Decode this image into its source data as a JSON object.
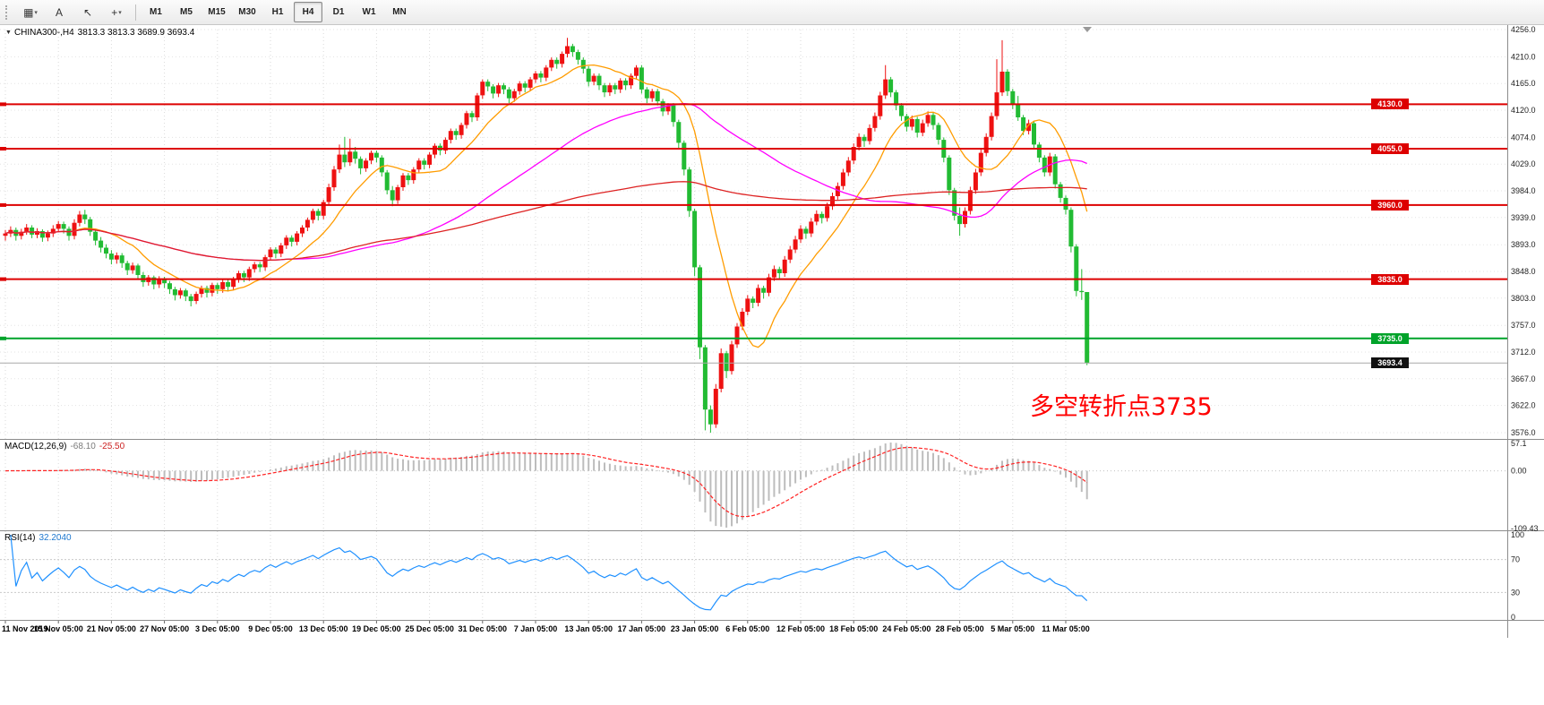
{
  "toolbar": {
    "icons": [
      {
        "name": "chart-window-icon",
        "glyph": "▦",
        "caret": true
      },
      {
        "name": "text-tool-icon",
        "glyph": "A",
        "caret": false
      },
      {
        "name": "cursor-tool-icon",
        "glyph": "↖",
        "caret": false
      },
      {
        "name": "crosshair-tool-icon",
        "glyph": "+",
        "caret": true
      }
    ],
    "timeframes": [
      "M1",
      "M5",
      "M15",
      "M30",
      "H1",
      "H4",
      "D1",
      "W1",
      "MN"
    ],
    "active_timeframe": "H4"
  },
  "chart": {
    "symbol_period": "CHINA300-,H4",
    "ohlc": "3813.3 3813.3 3689.9 3693.4",
    "annotation": {
      "text": "多空转折点3735",
      "color": "#ff0000"
    },
    "price_axis": [
      "4256.0",
      "4210.0",
      "4165.0",
      "4120.0",
      "4074.0",
      "4029.0",
      "3984.0",
      "3939.0",
      "3893.0",
      "3848.0",
      "3803.0",
      "3757.0",
      "3712.0",
      "3667.0",
      "3622.0",
      "3576.0"
    ],
    "hlines": [
      {
        "price": 4130.0,
        "label": "4130.0",
        "color": "#dd0000"
      },
      {
        "price": 4055.0,
        "label": "4055.0",
        "color": "#dd0000"
      },
      {
        "price": 3960.0,
        "label": "3960.0",
        "color": "#dd0000"
      },
      {
        "price": 3835.0,
        "label": "3835.0",
        "color": "#dd0000"
      },
      {
        "price": 3735.0,
        "label": "3735.0",
        "color": "#00a32a"
      }
    ],
    "current_price": {
      "value": 3693.4,
      "label": "3693.4",
      "color": "#111111"
    }
  },
  "macd": {
    "name": "MACD(12,26,9)",
    "value_main": "-68.10",
    "value_signal": "-25.50",
    "axis": [
      "57.1",
      "0.00",
      "-109.43"
    ],
    "params": {
      "fast": 12,
      "slow": 26,
      "signal": 9
    },
    "colors": {
      "histogram": "#bdbdbd",
      "signal": "#ff2222"
    }
  },
  "rsi": {
    "name": "RSI(14)",
    "value": "32.2040",
    "period": 14,
    "levels": [
      70,
      30
    ],
    "axis": [
      "100",
      "70",
      "30",
      "0"
    ],
    "color": "#1e90ff"
  },
  "time_axis": {
    "labels": [
      "11 Nov 2019",
      "15 Nov 05:00",
      "21 Nov 05:00",
      "27 Nov 05:00",
      "3 Dec 05:00",
      "9 Dec 05:00",
      "13 Dec 05:00",
      "19 Dec 05:00",
      "25 Dec 05:00",
      "31 Dec 05:00",
      "7 Jan 05:00",
      "13 Jan 05:00",
      "17 Jan 05:00",
      "23 Jan 05:00",
      "6 Feb 05:00",
      "12 Feb 05:00",
      "18 Feb 05:00",
      "24 Feb 05:00",
      "28 Feb 05:00",
      "5 Mar 05:00",
      "11 Mar 05:00"
    ],
    "tick_bars": [
      0,
      10,
      20,
      30,
      40,
      50,
      60,
      70,
      80,
      90,
      100,
      110,
      120,
      130,
      140,
      150,
      160,
      170,
      180,
      190,
      200
    ]
  },
  "chart_data": {
    "type": "candlestick",
    "symbol": "CHINA300-",
    "timeframe": "H4",
    "ylim": [
      3576,
      4262
    ],
    "colors": {
      "up": "#ee1111",
      "down": "#22bb33"
    },
    "ma": [
      {
        "period": 12,
        "color": "#ff9c00"
      },
      {
        "period": 55,
        "color": "#ff00ff"
      },
      {
        "period": 200,
        "color": "#dd2222"
      }
    ],
    "candles": [
      [
        3908,
        3918,
        3900,
        3912
      ],
      [
        3912,
        3924,
        3906,
        3918
      ],
      [
        3918,
        3922,
        3900,
        3908
      ],
      [
        3908,
        3920,
        3902,
        3915
      ],
      [
        3915,
        3928,
        3910,
        3922
      ],
      [
        3922,
        3926,
        3904,
        3910
      ],
      [
        3910,
        3921,
        3904,
        3916
      ],
      [
        3916,
        3919,
        3898,
        3905
      ],
      [
        3905,
        3917,
        3899,
        3912
      ],
      [
        3912,
        3926,
        3906,
        3920
      ],
      [
        3920,
        3933,
        3914,
        3928
      ],
      [
        3928,
        3932,
        3912,
        3920
      ],
      [
        3920,
        3924,
        3900,
        3908
      ],
      [
        3908,
        3936,
        3902,
        3930
      ],
      [
        3930,
        3950,
        3924,
        3944
      ],
      [
        3944,
        3952,
        3928,
        3936
      ],
      [
        3936,
        3940,
        3908,
        3915
      ],
      [
        3915,
        3920,
        3892,
        3900
      ],
      [
        3900,
        3906,
        3880,
        3888
      ],
      [
        3888,
        3894,
        3870,
        3878
      ],
      [
        3878,
        3884,
        3860,
        3868
      ],
      [
        3868,
        3880,
        3861,
        3875
      ],
      [
        3875,
        3879,
        3854,
        3862
      ],
      [
        3862,
        3866,
        3842,
        3850
      ],
      [
        3850,
        3863,
        3844,
        3858
      ],
      [
        3858,
        3861,
        3834,
        3842
      ],
      [
        3842,
        3847,
        3822,
        3830
      ],
      [
        3830,
        3842,
        3824,
        3838
      ],
      [
        3838,
        3841,
        3818,
        3826
      ],
      [
        3826,
        3840,
        3820,
        3836
      ],
      [
        3836,
        3839,
        3820,
        3828
      ],
      [
        3828,
        3832,
        3810,
        3818
      ],
      [
        3818,
        3822,
        3799,
        3808
      ],
      [
        3808,
        3820,
        3802,
        3816
      ],
      [
        3816,
        3819,
        3798,
        3806
      ],
      [
        3806,
        3810,
        3789,
        3798
      ],
      [
        3798,
        3814,
        3793,
        3810
      ],
      [
        3810,
        3824,
        3804,
        3820
      ],
      [
        3820,
        3824,
        3804,
        3812
      ],
      [
        3812,
        3829,
        3806,
        3825
      ],
      [
        3825,
        3829,
        3810,
        3818
      ],
      [
        3818,
        3834,
        3812,
        3830
      ],
      [
        3830,
        3834,
        3814,
        3822
      ],
      [
        3822,
        3839,
        3816,
        3835
      ],
      [
        3835,
        3849,
        3829,
        3845
      ],
      [
        3845,
        3849,
        3830,
        3838
      ],
      [
        3838,
        3856,
        3832,
        3852
      ],
      [
        3852,
        3864,
        3846,
        3860
      ],
      [
        3860,
        3864,
        3847,
        3855
      ],
      [
        3855,
        3876,
        3849,
        3872
      ],
      [
        3872,
        3889,
        3866,
        3885
      ],
      [
        3885,
        3889,
        3870,
        3878
      ],
      [
        3878,
        3896,
        3872,
        3892
      ],
      [
        3892,
        3909,
        3886,
        3905
      ],
      [
        3905,
        3909,
        3890,
        3898
      ],
      [
        3898,
        3916,
        3892,
        3912
      ],
      [
        3912,
        3926,
        3906,
        3922
      ],
      [
        3922,
        3939,
        3916,
        3935
      ],
      [
        3935,
        3954,
        3929,
        3950
      ],
      [
        3950,
        3954,
        3934,
        3942
      ],
      [
        3942,
        3969,
        3936,
        3965
      ],
      [
        3965,
        3996,
        3959,
        3990
      ],
      [
        3990,
        4026,
        3984,
        4020
      ],
      [
        4020,
        4062,
        4014,
        4045
      ],
      [
        4045,
        4075,
        4024,
        4032
      ],
      [
        4032,
        4072,
        4026,
        4050
      ],
      [
        4050,
        4058,
        4030,
        4038
      ],
      [
        4038,
        4042,
        4012,
        4022
      ],
      [
        4022,
        4039,
        4016,
        4035
      ],
      [
        4035,
        4052,
        4029,
        4048
      ],
      [
        4048,
        4052,
        4032,
        4040
      ],
      [
        4040,
        4044,
        4008,
        4015
      ],
      [
        4015,
        4019,
        3978,
        3985
      ],
      [
        3985,
        3992,
        3958,
        3968
      ],
      [
        3968,
        3994,
        3962,
        3990
      ],
      [
        3990,
        4014,
        3984,
        4010
      ],
      [
        4010,
        4014,
        3994,
        4002
      ],
      [
        4002,
        4024,
        3996,
        4020
      ],
      [
        4020,
        4039,
        4014,
        4035
      ],
      [
        4035,
        4039,
        4020,
        4028
      ],
      [
        4028,
        4049,
        4022,
        4045
      ],
      [
        4045,
        4064,
        4039,
        4060
      ],
      [
        4060,
        4064,
        4044,
        4052
      ],
      [
        4052,
        4074,
        4046,
        4070
      ],
      [
        4070,
        4089,
        4064,
        4085
      ],
      [
        4085,
        4089,
        4070,
        4078
      ],
      [
        4078,
        4099,
        4072,
        4095
      ],
      [
        4095,
        4119,
        4089,
        4115
      ],
      [
        4115,
        4119,
        4100,
        4108
      ],
      [
        4108,
        4149,
        4102,
        4145
      ],
      [
        4145,
        4172,
        4139,
        4168
      ],
      [
        4168,
        4172,
        4152,
        4160
      ],
      [
        4160,
        4164,
        4140,
        4148
      ],
      [
        4148,
        4166,
        4142,
        4162
      ],
      [
        4162,
        4166,
        4147,
        4155
      ],
      [
        4155,
        4159,
        4132,
        4140
      ],
      [
        4140,
        4156,
        4134,
        4152
      ],
      [
        4152,
        4169,
        4146,
        4165
      ],
      [
        4165,
        4169,
        4150,
        4158
      ],
      [
        4158,
        4176,
        4152,
        4172
      ],
      [
        4172,
        4186,
        4166,
        4182
      ],
      [
        4182,
        4186,
        4167,
        4175
      ],
      [
        4175,
        4196,
        4169,
        4192
      ],
      [
        4192,
        4209,
        4186,
        4205
      ],
      [
        4205,
        4209,
        4190,
        4198
      ],
      [
        4198,
        4219,
        4192,
        4215
      ],
      [
        4215,
        4242,
        4209,
        4228
      ],
      [
        4228,
        4232,
        4210,
        4218
      ],
      [
        4218,
        4222,
        4197,
        4205
      ],
      [
        4205,
        4209,
        4182,
        4190
      ],
      [
        4190,
        4194,
        4160,
        4168
      ],
      [
        4168,
        4182,
        4162,
        4178
      ],
      [
        4178,
        4182,
        4154,
        4162
      ],
      [
        4162,
        4166,
        4142,
        4150
      ],
      [
        4150,
        4166,
        4144,
        4162
      ],
      [
        4162,
        4166,
        4147,
        4155
      ],
      [
        4155,
        4174,
        4149,
        4170
      ],
      [
        4170,
        4174,
        4154,
        4162
      ],
      [
        4162,
        4182,
        4156,
        4178
      ],
      [
        4178,
        4196,
        4172,
        4192
      ],
      [
        4192,
        4196,
        4148,
        4155
      ],
      [
        4155,
        4159,
        4132,
        4140
      ],
      [
        4140,
        4156,
        4134,
        4152
      ],
      [
        4152,
        4156,
        4128,
        4135
      ],
      [
        4135,
        4139,
        4110,
        4118
      ],
      [
        4118,
        4132,
        4112,
        4128
      ],
      [
        4128,
        4132,
        4092,
        4100
      ],
      [
        4100,
        4104,
        4056,
        4065
      ],
      [
        4065,
        4069,
        4010,
        4020
      ],
      [
        4020,
        4024,
        3940,
        3950
      ],
      [
        3950,
        3954,
        3840,
        3855
      ],
      [
        3855,
        3859,
        3700,
        3720
      ],
      [
        3720,
        3724,
        3580,
        3615
      ],
      [
        3615,
        3622,
        3576,
        3590
      ],
      [
        3590,
        3658,
        3584,
        3650
      ],
      [
        3650,
        3718,
        3644,
        3710
      ],
      [
        3710,
        3714,
        3668,
        3680
      ],
      [
        3680,
        3731,
        3674,
        3725
      ],
      [
        3725,
        3761,
        3719,
        3755
      ],
      [
        3755,
        3786,
        3749,
        3780
      ],
      [
        3780,
        3808,
        3774,
        3802
      ],
      [
        3802,
        3806,
        3786,
        3795
      ],
      [
        3795,
        3826,
        3789,
        3820
      ],
      [
        3820,
        3824,
        3802,
        3812
      ],
      [
        3812,
        3844,
        3806,
        3838
      ],
      [
        3838,
        3858,
        3832,
        3852
      ],
      [
        3852,
        3856,
        3836,
        3845
      ],
      [
        3845,
        3874,
        3839,
        3868
      ],
      [
        3868,
        3891,
        3862,
        3885
      ],
      [
        3885,
        3908,
        3879,
        3902
      ],
      [
        3902,
        3926,
        3896,
        3920
      ],
      [
        3920,
        3924,
        3903,
        3912
      ],
      [
        3912,
        3938,
        3906,
        3932
      ],
      [
        3932,
        3951,
        3926,
        3945
      ],
      [
        3945,
        3949,
        3929,
        3938
      ],
      [
        3938,
        3964,
        3932,
        3958
      ],
      [
        3958,
        3981,
        3952,
        3975
      ],
      [
        3975,
        3998,
        3969,
        3992
      ],
      [
        3992,
        4021,
        3986,
        4015
      ],
      [
        4015,
        4041,
        4009,
        4035
      ],
      [
        4035,
        4064,
        4029,
        4058
      ],
      [
        4058,
        4081,
        4052,
        4075
      ],
      [
        4075,
        4079,
        4058,
        4068
      ],
      [
        4068,
        4096,
        4062,
        4090
      ],
      [
        4090,
        4116,
        4084,
        4110
      ],
      [
        4110,
        4151,
        4104,
        4145
      ],
      [
        4145,
        4196,
        4139,
        4172
      ],
      [
        4172,
        4176,
        4142,
        4150
      ],
      [
        4150,
        4154,
        4120,
        4128
      ],
      [
        4128,
        4132,
        4102,
        4110
      ],
      [
        4110,
        4114,
        4084,
        4092
      ],
      [
        4092,
        4111,
        4086,
        4105
      ],
      [
        4105,
        4109,
        4074,
        4082
      ],
      [
        4082,
        4104,
        4076,
        4098
      ],
      [
        4098,
        4118,
        4092,
        4112
      ],
      [
        4112,
        4116,
        4087,
        4095
      ],
      [
        4095,
        4099,
        4062,
        4070
      ],
      [
        4070,
        4074,
        4032,
        4040
      ],
      [
        4040,
        4044,
        3977,
        3985
      ],
      [
        3985,
        3989,
        3934,
        3942
      ],
      [
        3942,
        3956,
        3908,
        3928
      ],
      [
        3928,
        3956,
        3922,
        3950
      ],
      [
        3950,
        3991,
        3944,
        3985
      ],
      [
        3985,
        4021,
        3979,
        4015
      ],
      [
        4015,
        4054,
        4009,
        4048
      ],
      [
        4048,
        4081,
        4042,
        4075
      ],
      [
        4075,
        4116,
        4069,
        4110
      ],
      [
        4110,
        4206,
        4104,
        4150
      ],
      [
        4150,
        4238,
        4144,
        4185
      ],
      [
        4185,
        4189,
        4144,
        4152
      ],
      [
        4152,
        4156,
        4122,
        4130
      ],
      [
        4130,
        4144,
        4102,
        4108
      ],
      [
        4108,
        4112,
        4078,
        4085
      ],
      [
        4085,
        4104,
        4079,
        4098
      ],
      [
        4098,
        4102,
        4054,
        4062
      ],
      [
        4062,
        4066,
        4032,
        4040
      ],
      [
        4040,
        4044,
        4008,
        4015
      ],
      [
        4015,
        4048,
        4009,
        4042
      ],
      [
        4042,
        4046,
        3988,
        3995
      ],
      [
        3995,
        3999,
        3964,
        3972
      ],
      [
        3972,
        3976,
        3944,
        3952
      ],
      [
        3952,
        3956,
        3880,
        3890
      ],
      [
        3890,
        3894,
        3806,
        3815
      ],
      [
        3815,
        3852,
        3800,
        3813
      ],
      [
        3813.3,
        3813.3,
        3689.9,
        3693.4
      ]
    ]
  }
}
